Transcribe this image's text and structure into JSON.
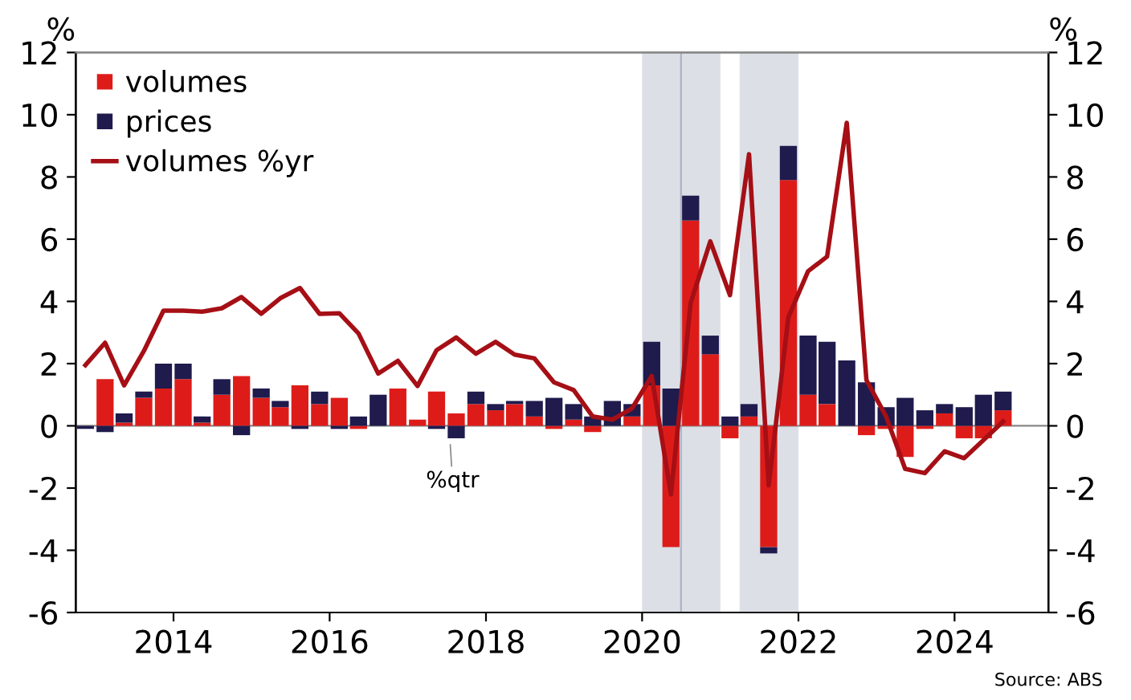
{
  "chart_data": {
    "type": "bar",
    "stacked": true,
    "x": [
      "2012-11-15",
      "2013-02-15",
      "2013-05-15",
      "2013-08-15",
      "2013-11-15",
      "2014-02-15",
      "2014-05-15",
      "2014-08-15",
      "2014-11-15",
      "2015-02-15",
      "2015-05-15",
      "2015-08-15",
      "2015-11-15",
      "2016-02-15",
      "2016-05-15",
      "2016-08-15",
      "2016-11-15",
      "2017-02-15",
      "2017-05-15",
      "2017-08-15",
      "2017-11-15",
      "2018-02-15",
      "2018-05-15",
      "2018-08-15",
      "2018-11-15",
      "2019-02-15",
      "2019-05-15",
      "2019-08-15",
      "2019-11-15",
      "2020-02-15",
      "2020-05-15",
      "2020-08-15",
      "2020-11-15",
      "2021-02-15",
      "2021-05-15",
      "2021-08-15",
      "2021-11-15",
      "2022-02-15",
      "2022-05-15",
      "2022-08-15",
      "2022-11-15",
      "2023-02-15",
      "2023-05-15",
      "2023-08-15",
      "2023-11-15",
      "2024-02-15",
      "2024-05-15",
      "2024-08-15"
    ],
    "series": [
      {
        "name": "volumes",
        "color": "#dd1c1a",
        "values": [
          0,
          1.5,
          0.1,
          0.9,
          1.2,
          1.5,
          0.1,
          1.0,
          1.6,
          0.9,
          0.6,
          1.3,
          0.7,
          0.9,
          -0.1,
          0,
          1.2,
          0.2,
          1.1,
          0.4,
          0.7,
          0.5,
          0.7,
          0.3,
          -0.1,
          0.2,
          -0.2,
          0,
          0.3,
          1.3,
          -3.9,
          6.6,
          2.3,
          -0.4,
          0.3,
          -3.9,
          7.9,
          1.0,
          0.7,
          0,
          -0.3,
          -0.1,
          -1.0,
          -0.1,
          0.4,
          -0.4,
          -0.4,
          0.5
        ]
      },
      {
        "name": "prices",
        "color": "#1f1b4d",
        "values": [
          -0.1,
          -0.2,
          0.3,
          0.2,
          0.8,
          0.5,
          0.2,
          0.5,
          -0.3,
          0.3,
          0.2,
          -0.1,
          0.4,
          -0.1,
          0.3,
          1.0,
          0,
          0,
          -0.1,
          -0.4,
          0.4,
          0.2,
          0.1,
          0.5,
          0.9,
          0.5,
          0.3,
          0.8,
          0.4,
          1.4,
          1.2,
          0.8,
          0.6,
          0.3,
          0.4,
          -0.2,
          1.1,
          1.9,
          2.0,
          2.1,
          1.4,
          0.6,
          0.9,
          0.5,
          0.3,
          0.6,
          1.0,
          0.6
        ]
      },
      {
        "name": "volumes %yr",
        "type": "line",
        "color": "#a50f15",
        "values": [
          1.95,
          2.67,
          1.3,
          2.4,
          3.7,
          3.7,
          3.67,
          3.78,
          4.14,
          3.6,
          4.1,
          4.43,
          3.6,
          3.62,
          2.97,
          1.68,
          2.09,
          1.28,
          2.43,
          2.84,
          2.32,
          2.7,
          2.29,
          2.17,
          1.4,
          1.15,
          0.3,
          0.2,
          0.56,
          1.6,
          -2.2,
          3.95,
          5.93,
          4.2,
          8.73,
          -1.91,
          3.49,
          4.97,
          5.44,
          9.74,
          1.47,
          0.3,
          -1.38,
          -1.52,
          -0.82,
          -1.04,
          -0.46,
          0.14
        ]
      }
    ],
    "ylabel": "%",
    "y2label": "%",
    "xlim": [
      "2012-10-01",
      "2025-03-15"
    ],
    "xticks": [
      "2014",
      "2016",
      "2018",
      "2020",
      "2022",
      "2024"
    ],
    "ylim": [
      -6,
      12
    ],
    "yticks": [
      -6,
      -4,
      -2,
      0,
      2,
      4,
      6,
      8,
      10,
      12
    ],
    "y2lim": [
      -6,
      12
    ],
    "y2ticks": [
      -6,
      -4,
      -2,
      0,
      2,
      4,
      6,
      8,
      10,
      12
    ],
    "bands": [
      {
        "axis": "x",
        "from": "2020-01-01",
        "to": "2021-01-01",
        "color": "#dcdfe6"
      },
      {
        "axis": "x",
        "from": "2021-04-01",
        "to": "2022-01-01",
        "color": "#dcdfe6"
      }
    ],
    "ref_lines": [
      {
        "axis": "x",
        "value": "2020-07-01",
        "color": "#aab4c4"
      },
      {
        "axis": "y",
        "value": 0,
        "color": "#888888"
      }
    ],
    "annotations": [
      "%qtr",
      "Source: ABS"
    ],
    "legend": "top left",
    "marker": "none",
    "line_style": "solid",
    "grid": false
  }
}
